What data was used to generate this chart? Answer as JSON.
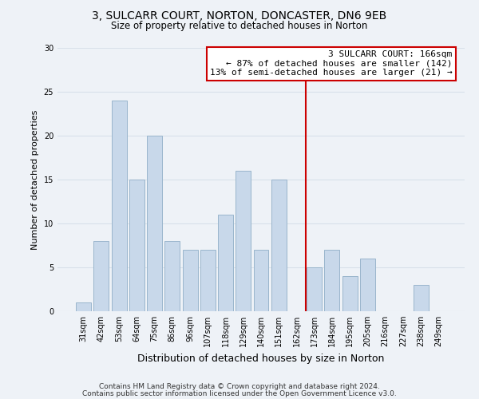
{
  "title1": "3, SULCARR COURT, NORTON, DONCASTER, DN6 9EB",
  "title2": "Size of property relative to detached houses in Norton",
  "xlabel": "Distribution of detached houses by size in Norton",
  "ylabel": "Number of detached properties",
  "categories": [
    "31sqm",
    "42sqm",
    "53sqm",
    "64sqm",
    "75sqm",
    "86sqm",
    "96sqm",
    "107sqm",
    "118sqm",
    "129sqm",
    "140sqm",
    "151sqm",
    "162sqm",
    "173sqm",
    "184sqm",
    "195sqm",
    "205sqm",
    "216sqm",
    "227sqm",
    "238sqm",
    "249sqm"
  ],
  "values": [
    1,
    8,
    24,
    15,
    20,
    8,
    7,
    7,
    11,
    16,
    7,
    15,
    0,
    5,
    7,
    4,
    6,
    0,
    0,
    3,
    0
  ],
  "bar_color": "#c8d8ea",
  "bar_edge_color": "#9ab5cc",
  "vline_color": "#cc0000",
  "ylim": [
    0,
    30
  ],
  "yticks": [
    0,
    5,
    10,
    15,
    20,
    25,
    30
  ],
  "annotation_title": "3 SULCARR COURT: 166sqm",
  "annotation_line1": "← 87% of detached houses are smaller (142)",
  "annotation_line2": "13% of semi-detached houses are larger (21) →",
  "annotation_box_edge_color": "#cc0000",
  "footer1": "Contains HM Land Registry data © Crown copyright and database right 2024.",
  "footer2": "Contains public sector information licensed under the Open Government Licence v3.0.",
  "background_color": "#eef2f7",
  "grid_color": "#d8e0ea"
}
